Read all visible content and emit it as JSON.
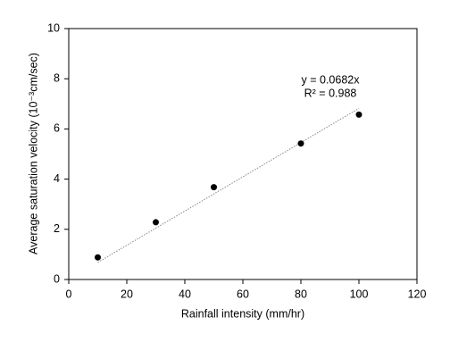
{
  "chart_data": {
    "type": "scatter",
    "x_label": "Rainfall intensity (mm/hr)",
    "y_label": "Average saturation velocity (10⁻³cm/sec)",
    "x": [
      10,
      30,
      50,
      80,
      100
    ],
    "values": [
      0.88,
      2.28,
      3.68,
      5.42,
      6.57
    ],
    "color": "#000000",
    "xlim": [
      0,
      120
    ],
    "xticks": [
      0,
      20,
      40,
      60,
      80,
      100,
      120
    ],
    "ylim": [
      0,
      10
    ],
    "yticks": [
      0,
      2,
      4,
      6,
      8,
      10
    ],
    "trendline": {
      "slope": 0.0682,
      "color": "#888888",
      "equation": "y = 0.0682x",
      "r_squared": "R² = 0.988"
    }
  }
}
